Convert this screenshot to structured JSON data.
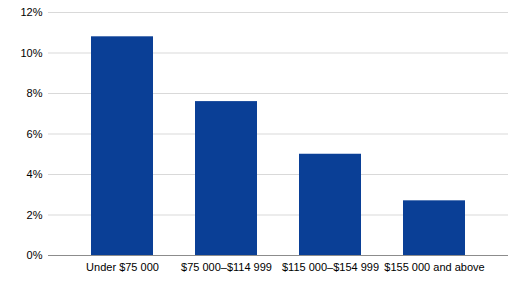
{
  "chart_data": {
    "type": "bar",
    "categories": [
      "Under $75 000",
      "$75 000–$114 999",
      "$115 000–$154 999",
      "$155 000 and above"
    ],
    "values": [
      10.8,
      7.6,
      5.0,
      2.7
    ],
    "color": "#0a3f96",
    "ylim": [
      0,
      12
    ],
    "yticks": [
      {
        "value": 0,
        "label": "0%"
      },
      {
        "value": 2,
        "label": "2%"
      },
      {
        "value": 4,
        "label": "4%"
      },
      {
        "value": 6,
        "label": "6%"
      },
      {
        "value": 8,
        "label": "8%"
      },
      {
        "value": 10,
        "label": "10%"
      },
      {
        "value": 12,
        "label": "12%"
      }
    ],
    "grid": true
  }
}
